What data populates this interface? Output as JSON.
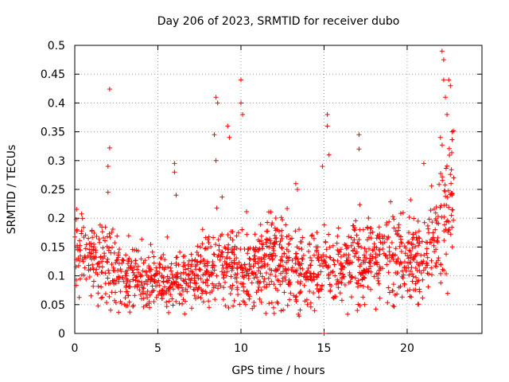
{
  "chart_data": {
    "type": "scatter",
    "title": "Day 206 of 2023, SRMTID for receiver dubo",
    "xlabel": "GPS time / hours",
    "ylabel": "SRMTID / TECUs",
    "xlim": [
      0,
      24.5
    ],
    "ylim": [
      0,
      0.5
    ],
    "x_ticks": [
      0,
      5,
      10,
      15,
      20
    ],
    "y_ticks": [
      0,
      0.05,
      0.1,
      0.15,
      0.2,
      0.25,
      0.3,
      0.35,
      0.4,
      0.45,
      0.5
    ],
    "x_tick_labels": [
      "0",
      "5",
      "10",
      "15",
      "20"
    ],
    "y_tick_labels": [
      "0",
      "0.05",
      "0.1",
      "0.15",
      "0.2",
      "0.25",
      "0.3",
      "0.35",
      "0.4",
      "0.45",
      "0.5"
    ],
    "grid": true,
    "marker": "+",
    "series": [
      {
        "name": "SRMTID",
        "color": "#ff0000",
        "envelope_note": "dense cloud of ~1500 points; profile values (hour, typical TECU) plus highlighted outliers",
        "profile": [
          [
            0.0,
            0.15
          ],
          [
            1.0,
            0.13
          ],
          [
            2.0,
            0.12
          ],
          [
            3.0,
            0.1
          ],
          [
            4.0,
            0.1
          ],
          [
            5.0,
            0.09
          ],
          [
            6.0,
            0.09
          ],
          [
            7.0,
            0.09
          ],
          [
            8.0,
            0.12
          ],
          [
            9.0,
            0.14
          ],
          [
            10.0,
            0.1
          ],
          [
            11.0,
            0.12
          ],
          [
            12.0,
            0.14
          ],
          [
            13.0,
            0.12
          ],
          [
            14.0,
            0.11
          ],
          [
            15.0,
            0.12
          ],
          [
            16.0,
            0.11
          ],
          [
            17.0,
            0.13
          ],
          [
            18.0,
            0.13
          ],
          [
            19.0,
            0.14
          ],
          [
            20.0,
            0.13
          ],
          [
            21.0,
            0.13
          ],
          [
            22.0,
            0.18
          ],
          [
            22.8,
            0.22
          ]
        ],
        "outliers": [
          [
            2.1,
            0.424
          ],
          [
            2.1,
            0.322
          ],
          [
            2.0,
            0.29
          ],
          [
            2.0,
            0.245
          ],
          [
            8.5,
            0.41
          ],
          [
            8.6,
            0.4
          ],
          [
            8.4,
            0.345
          ],
          [
            8.5,
            0.3
          ],
          [
            9.2,
            0.36
          ],
          [
            9.3,
            0.34
          ],
          [
            10.0,
            0.44
          ],
          [
            10.0,
            0.4
          ],
          [
            10.1,
            0.38
          ],
          [
            6.0,
            0.295
          ],
          [
            6.0,
            0.28
          ],
          [
            6.1,
            0.24
          ],
          [
            13.3,
            0.26
          ],
          [
            13.4,
            0.25
          ],
          [
            14.9,
            0.29
          ],
          [
            15.2,
            0.38
          ],
          [
            15.2,
            0.36
          ],
          [
            15.3,
            0.31
          ],
          [
            17.1,
            0.345
          ],
          [
            17.1,
            0.32
          ],
          [
            21.0,
            0.295
          ],
          [
            22.0,
            0.34
          ],
          [
            22.1,
            0.49
          ],
          [
            22.2,
            0.475
          ],
          [
            22.2,
            0.44
          ],
          [
            22.3,
            0.41
          ],
          [
            22.4,
            0.38
          ],
          [
            22.5,
            0.44
          ],
          [
            22.6,
            0.43
          ],
          [
            22.7,
            0.35
          ],
          [
            22.8,
            0.27
          ],
          [
            1.4,
            0.07
          ],
          [
            3.0,
            0.05
          ],
          [
            4.5,
            0.045
          ],
          [
            11.5,
            0.035
          ],
          [
            12.0,
            0.035
          ],
          [
            13.5,
            0.03
          ],
          [
            14.0,
            0.05
          ],
          [
            15.0,
            0.0
          ],
          [
            17.0,
            0.04
          ]
        ],
        "point_count": 1500,
        "random_seed": 206
      }
    ]
  }
}
